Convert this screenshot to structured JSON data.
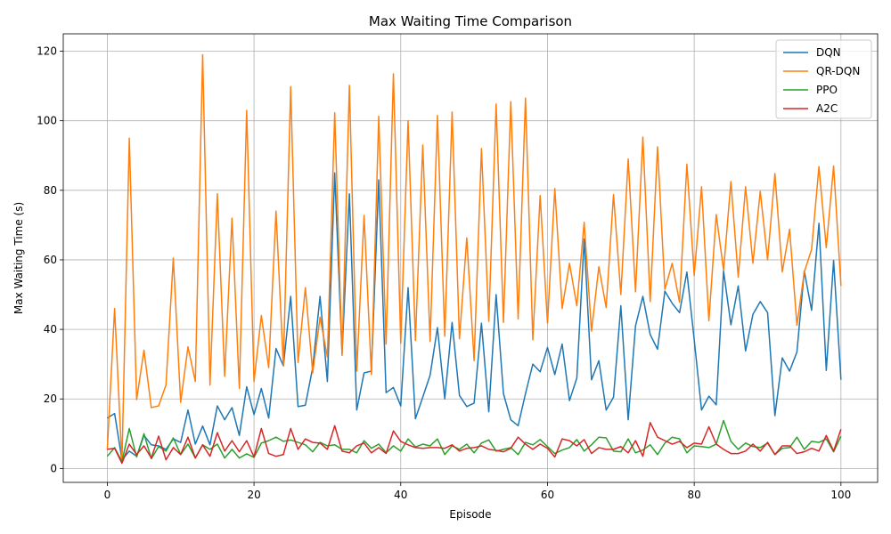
{
  "chart_data": {
    "type": "line",
    "title": "Max Waiting Time Comparison",
    "xlabel": "Episode",
    "ylabel": "Max Waiting Time (s)",
    "xlim": [
      -6,
      105
    ],
    "ylim": [
      -4,
      125
    ],
    "xticks": [
      0,
      20,
      40,
      60,
      80,
      100
    ],
    "yticks": [
      0,
      20,
      40,
      60,
      80,
      100,
      120
    ],
    "grid": true,
    "legend_position": "top-right",
    "x": [
      0,
      1,
      2,
      3,
      4,
      5,
      6,
      7,
      8,
      9,
      10,
      11,
      12,
      13,
      14,
      15,
      16,
      17,
      18,
      19,
      20,
      21,
      22,
      23,
      24,
      25,
      26,
      27,
      28,
      29,
      30,
      31,
      32,
      33,
      34,
      35,
      36,
      37,
      38,
      39,
      40,
      41,
      42,
      43,
      44,
      45,
      46,
      47,
      48,
      49,
      50,
      51,
      52,
      53,
      54,
      55,
      56,
      57,
      58,
      59,
      60,
      61,
      62,
      63,
      64,
      65,
      66,
      67,
      68,
      69,
      70,
      71,
      72,
      73,
      74,
      75,
      76,
      77,
      78,
      79,
      80,
      81,
      82,
      83,
      84,
      85,
      86,
      87,
      88,
      89,
      90,
      91,
      92,
      93,
      94,
      95,
      96,
      97,
      98,
      99,
      100
    ],
    "series": [
      {
        "name": "DQN",
        "color": "#1f77b4",
        "values": [
          14.5,
          15.8,
          2.5,
          5.0,
          3.5,
          9.5,
          6.8,
          6.5,
          5.5,
          8.5,
          7.5,
          16.8,
          7.0,
          12.2,
          6.8,
          18.0,
          14.0,
          17.5,
          9.5,
          23.5,
          15.5,
          23.0,
          14.5,
          34.5,
          29.5,
          49.5,
          17.8,
          18.2,
          29.0,
          49.5,
          25.0,
          85.0,
          33.0,
          79.0,
          16.8,
          27.5,
          28.0,
          83.0,
          21.8,
          23.3,
          18.0,
          52.0,
          14.3,
          20.5,
          26.8,
          40.5,
          20.0,
          42.0,
          21.0,
          17.8,
          18.8,
          41.8,
          16.3,
          50.0,
          21.5,
          14.0,
          12.3,
          21.5,
          30.0,
          27.8,
          34.8,
          27.0,
          35.8,
          19.5,
          26.0,
          66.0,
          25.5,
          31.0,
          16.8,
          20.5,
          46.8,
          14.0,
          41.0,
          49.5,
          38.5,
          34.3,
          51.0,
          47.5,
          44.8,
          56.5,
          37.0,
          16.8,
          20.8,
          18.3,
          56.8,
          41.3,
          52.5,
          33.8,
          44.3,
          48.0,
          44.8,
          15.2,
          31.8,
          28.0,
          33.5,
          56.8,
          45.5,
          70.5,
          28.2,
          59.8,
          25.5
        ]
      },
      {
        "name": "QR-DQN",
        "color": "#ff7f0e",
        "values": [
          5.5,
          46.0,
          1.8,
          95.0,
          19.8,
          34.0,
          17.5,
          18.0,
          24.0,
          60.5,
          19.0,
          35.0,
          25.0,
          119.0,
          24.0,
          79.0,
          26.5,
          72.0,
          23.0,
          103.0,
          25.0,
          44.0,
          29.0,
          74.0,
          29.5,
          109.8,
          30.5,
          52.0,
          27.5,
          43.5,
          32.0,
          102.3,
          32.5,
          110.2,
          28.0,
          72.8,
          27.0,
          101.3,
          35.8,
          113.5,
          36.0,
          100.0,
          36.8,
          93.0,
          36.5,
          101.5,
          38.0,
          102.5,
          37.3,
          66.3,
          31.0,
          92.0,
          42.3,
          104.8,
          42.0,
          105.5,
          43.0,
          106.5,
          37.0,
          78.5,
          41.8,
          80.5,
          46.0,
          59.0,
          46.8,
          70.8,
          39.5,
          58.0,
          46.3,
          78.8,
          50.0,
          89.0,
          50.8,
          95.3,
          48.0,
          92.5,
          51.5,
          59.0,
          47.8,
          87.5,
          55.5,
          81.0,
          42.5,
          73.0,
          57.0,
          82.5,
          55.0,
          81.0,
          59.0,
          79.7,
          60.0,
          84.8,
          56.5,
          68.8,
          41.2,
          56.5,
          63.0,
          86.8,
          63.5,
          87.0,
          52.5
        ]
      },
      {
        "name": "PPO",
        "color": "#2ca02c",
        "values": [
          3.5,
          6.0,
          2.0,
          11.5,
          3.3,
          10.0,
          2.8,
          6.3,
          5.0,
          8.8,
          4.0,
          7.0,
          3.0,
          6.8,
          5.5,
          7.0,
          3.0,
          5.5,
          3.0,
          4.2,
          3.2,
          7.3,
          8.0,
          9.0,
          7.8,
          8.2,
          7.5,
          6.8,
          4.8,
          7.5,
          6.5,
          6.8,
          5.5,
          5.5,
          4.5,
          8.0,
          5.8,
          7.0,
          4.5,
          6.5,
          5.0,
          8.5,
          6.2,
          7.0,
          6.5,
          8.5,
          4.0,
          6.5,
          5.5,
          7.0,
          4.5,
          7.3,
          8.2,
          5.0,
          5.5,
          6.0,
          4.0,
          7.5,
          6.8,
          8.3,
          6.3,
          4.3,
          5.3,
          6.0,
          8.3,
          5.0,
          6.8,
          9.0,
          8.8,
          5.0,
          4.8,
          8.5,
          4.5,
          5.3,
          6.8,
          4.0,
          7.3,
          9.0,
          8.5,
          4.5,
          6.5,
          6.3,
          6.0,
          7.0,
          13.8,
          7.8,
          5.5,
          7.3,
          6.3,
          6.0,
          7.3,
          4.0,
          5.8,
          6.0,
          9.0,
          5.5,
          7.8,
          7.5,
          8.5,
          4.8,
          9.3
        ]
      },
      {
        "name": "A2C",
        "color": "#d62728",
        "values": [
          5.5,
          5.8,
          1.5,
          7.0,
          4.0,
          6.5,
          3.0,
          9.3,
          2.5,
          6.0,
          4.0,
          9.0,
          3.0,
          6.8,
          3.5,
          10.3,
          5.0,
          8.0,
          4.8,
          8.0,
          3.3,
          11.5,
          4.3,
          3.5,
          4.0,
          11.5,
          5.5,
          8.5,
          7.5,
          7.3,
          5.5,
          12.3,
          5.0,
          4.5,
          6.5,
          7.3,
          4.5,
          6.0,
          4.3,
          10.8,
          7.8,
          6.8,
          6.0,
          5.8,
          6.0,
          6.0,
          5.8,
          6.8,
          5.0,
          5.8,
          6.0,
          6.5,
          5.5,
          5.2,
          4.8,
          5.8,
          9.0,
          7.0,
          5.5,
          7.0,
          5.8,
          3.3,
          8.5,
          8.0,
          6.5,
          8.3,
          4.3,
          6.0,
          5.5,
          5.5,
          6.3,
          4.5,
          8.0,
          3.5,
          13.2,
          9.0,
          8.0,
          7.0,
          7.8,
          6.0,
          7.3,
          7.0,
          12.0,
          7.0,
          5.5,
          4.3,
          4.3,
          5.0,
          7.0,
          5.0,
          7.5,
          4.0,
          6.5,
          6.5,
          4.3,
          4.8,
          5.8,
          5.0,
          9.5,
          5.0,
          11.3
        ]
      }
    ]
  }
}
